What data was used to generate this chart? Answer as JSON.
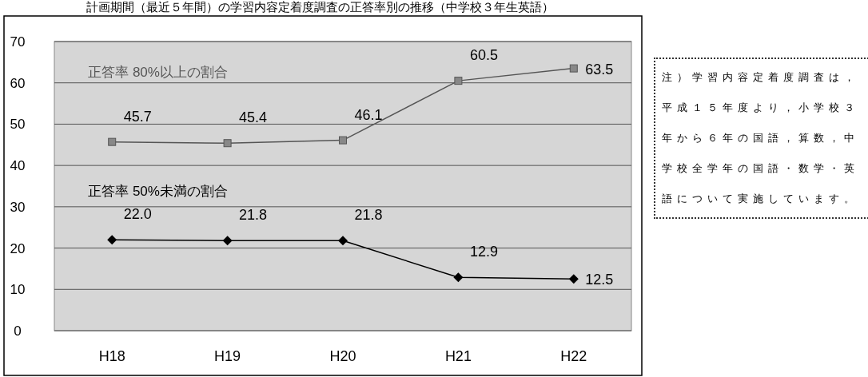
{
  "chart_data": {
    "type": "line",
    "title": "計画期間（最近５年間）の学習内容定着度調査の正答率別の推移（中学校３年生英語）",
    "categories": [
      "H18",
      "H19",
      "H20",
      "H21",
      "H22"
    ],
    "series": [
      {
        "name": "正答率 80%以上の割合",
        "color": "#555555",
        "marker": "square",
        "values": [
          45.7,
          45.4,
          46.1,
          60.5,
          63.5
        ],
        "value_labels": [
          "45.7",
          "45.4",
          "46.1",
          "60.5",
          "63.5"
        ]
      },
      {
        "name": "正答率 50%未満の割合",
        "color": "#000000",
        "marker": "diamond",
        "values": [
          22.0,
          21.8,
          21.8,
          12.9,
          12.5
        ],
        "value_labels": [
          "22.0",
          "21.8",
          "21.8",
          "12.9",
          "12.5"
        ]
      }
    ],
    "ylim": [
      0,
      70
    ],
    "yticks": [
      0,
      10,
      20,
      30,
      40,
      50,
      60,
      70
    ],
    "grid": "y",
    "annotations": [
      "注）学習内容定着度調査は，平成１５年度より，小学校３年から６年の国語，算数，中学校全学年の国語・数学・英語について実施しています。"
    ]
  }
}
